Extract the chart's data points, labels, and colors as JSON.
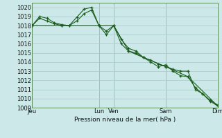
{
  "background_color": "#cce8e8",
  "grid_color": "#aacccc",
  "line_color": "#1a5c1a",
  "marker_color": "#1a5c1a",
  "xlabel": "Pression niveau de la mer( hPa )",
  "ylim": [
    1009,
    1020.5
  ],
  "yticks": [
    1009,
    1010,
    1011,
    1012,
    1013,
    1014,
    1015,
    1016,
    1017,
    1018,
    1019,
    1020
  ],
  "xtick_labels": [
    "Jeu",
    "Lun",
    "Ven",
    "Sam",
    "Dim"
  ],
  "xtick_positions": [
    0,
    9,
    11,
    18,
    25
  ],
  "vline_positions": [
    0,
    9,
    11,
    18,
    25
  ],
  "xlim": [
    0,
    25
  ],
  "series1_x": [
    0,
    1,
    2,
    3,
    4,
    5,
    6,
    7,
    8,
    9,
    10,
    11,
    12,
    13,
    14,
    15,
    16,
    17,
    18,
    19,
    20,
    21,
    22,
    23,
    24,
    25
  ],
  "series1_y": [
    1018.0,
    1019.0,
    1018.8,
    1018.3,
    1018.1,
    1018.0,
    1018.9,
    1019.8,
    1020.0,
    1018.0,
    1017.0,
    1018.0,
    1016.0,
    1015.2,
    1015.0,
    1014.5,
    1014.2,
    1013.8,
    1013.5,
    1013.2,
    1013.0,
    1013.0,
    1011.0,
    1010.5,
    1009.8,
    1009.3
  ],
  "series2_x": [
    0,
    1,
    2,
    3,
    4,
    5,
    6,
    7,
    8,
    9,
    10,
    11,
    12,
    13,
    14,
    15,
    16,
    17,
    18,
    19,
    20,
    21,
    22,
    23,
    24,
    25
  ],
  "series2_y": [
    1018.0,
    1018.8,
    1018.5,
    1018.2,
    1018.0,
    1018.0,
    1018.5,
    1019.3,
    1019.7,
    1018.0,
    1017.4,
    1018.0,
    1016.5,
    1015.5,
    1015.2,
    1014.5,
    1014.0,
    1013.5,
    1013.7,
    1013.0,
    1012.5,
    1012.4,
    1011.2,
    1010.5,
    1009.7,
    1009.2
  ],
  "series3_x": [
    0,
    4,
    9,
    11,
    13,
    15,
    18,
    21,
    25
  ],
  "series3_y": [
    1018.0,
    1018.0,
    1018.0,
    1018.0,
    1015.2,
    1014.5,
    1013.5,
    1012.4,
    1009.2
  ]
}
